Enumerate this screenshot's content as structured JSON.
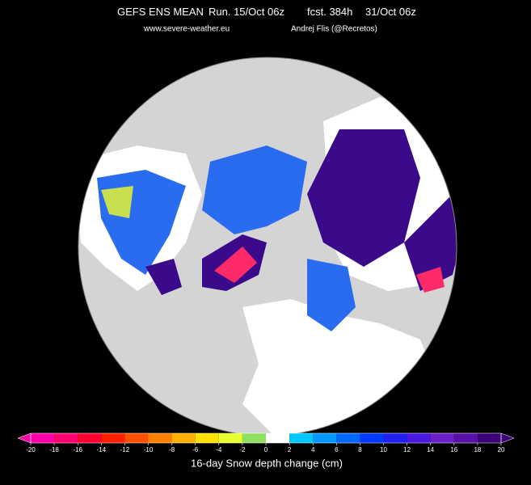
{
  "header": {
    "title": "GEFS ENS MEAN",
    "run": "Run. 15/Oct 06z",
    "forecast": "fcst. 384h",
    "valid": "31/Oct 06z",
    "website": "www.severe-weather.eu",
    "author": "Andrej Flis (@Recretos)"
  },
  "colorbar": {
    "label": "16-day Snow depth change (cm)",
    "ticks": [
      -20,
      -18,
      -16,
      -14,
      -12,
      -10,
      -8,
      -6,
      -4,
      -2,
      0,
      2,
      4,
      6,
      8,
      10,
      12,
      14,
      16,
      18,
      20
    ],
    "colors": [
      "#ff00a8",
      "#ff0070",
      "#ff0030",
      "#ff2000",
      "#ff5000",
      "#ff8000",
      "#ffb000",
      "#ffe000",
      "#e8ff30",
      "#90e060",
      "#ffffff",
      "#00c8ff",
      "#0098ff",
      "#0068ff",
      "#0038ff",
      "#2020f0",
      "#4a18e0",
      "#6a20c8",
      "#5a10a8",
      "#3c0078"
    ]
  }
}
